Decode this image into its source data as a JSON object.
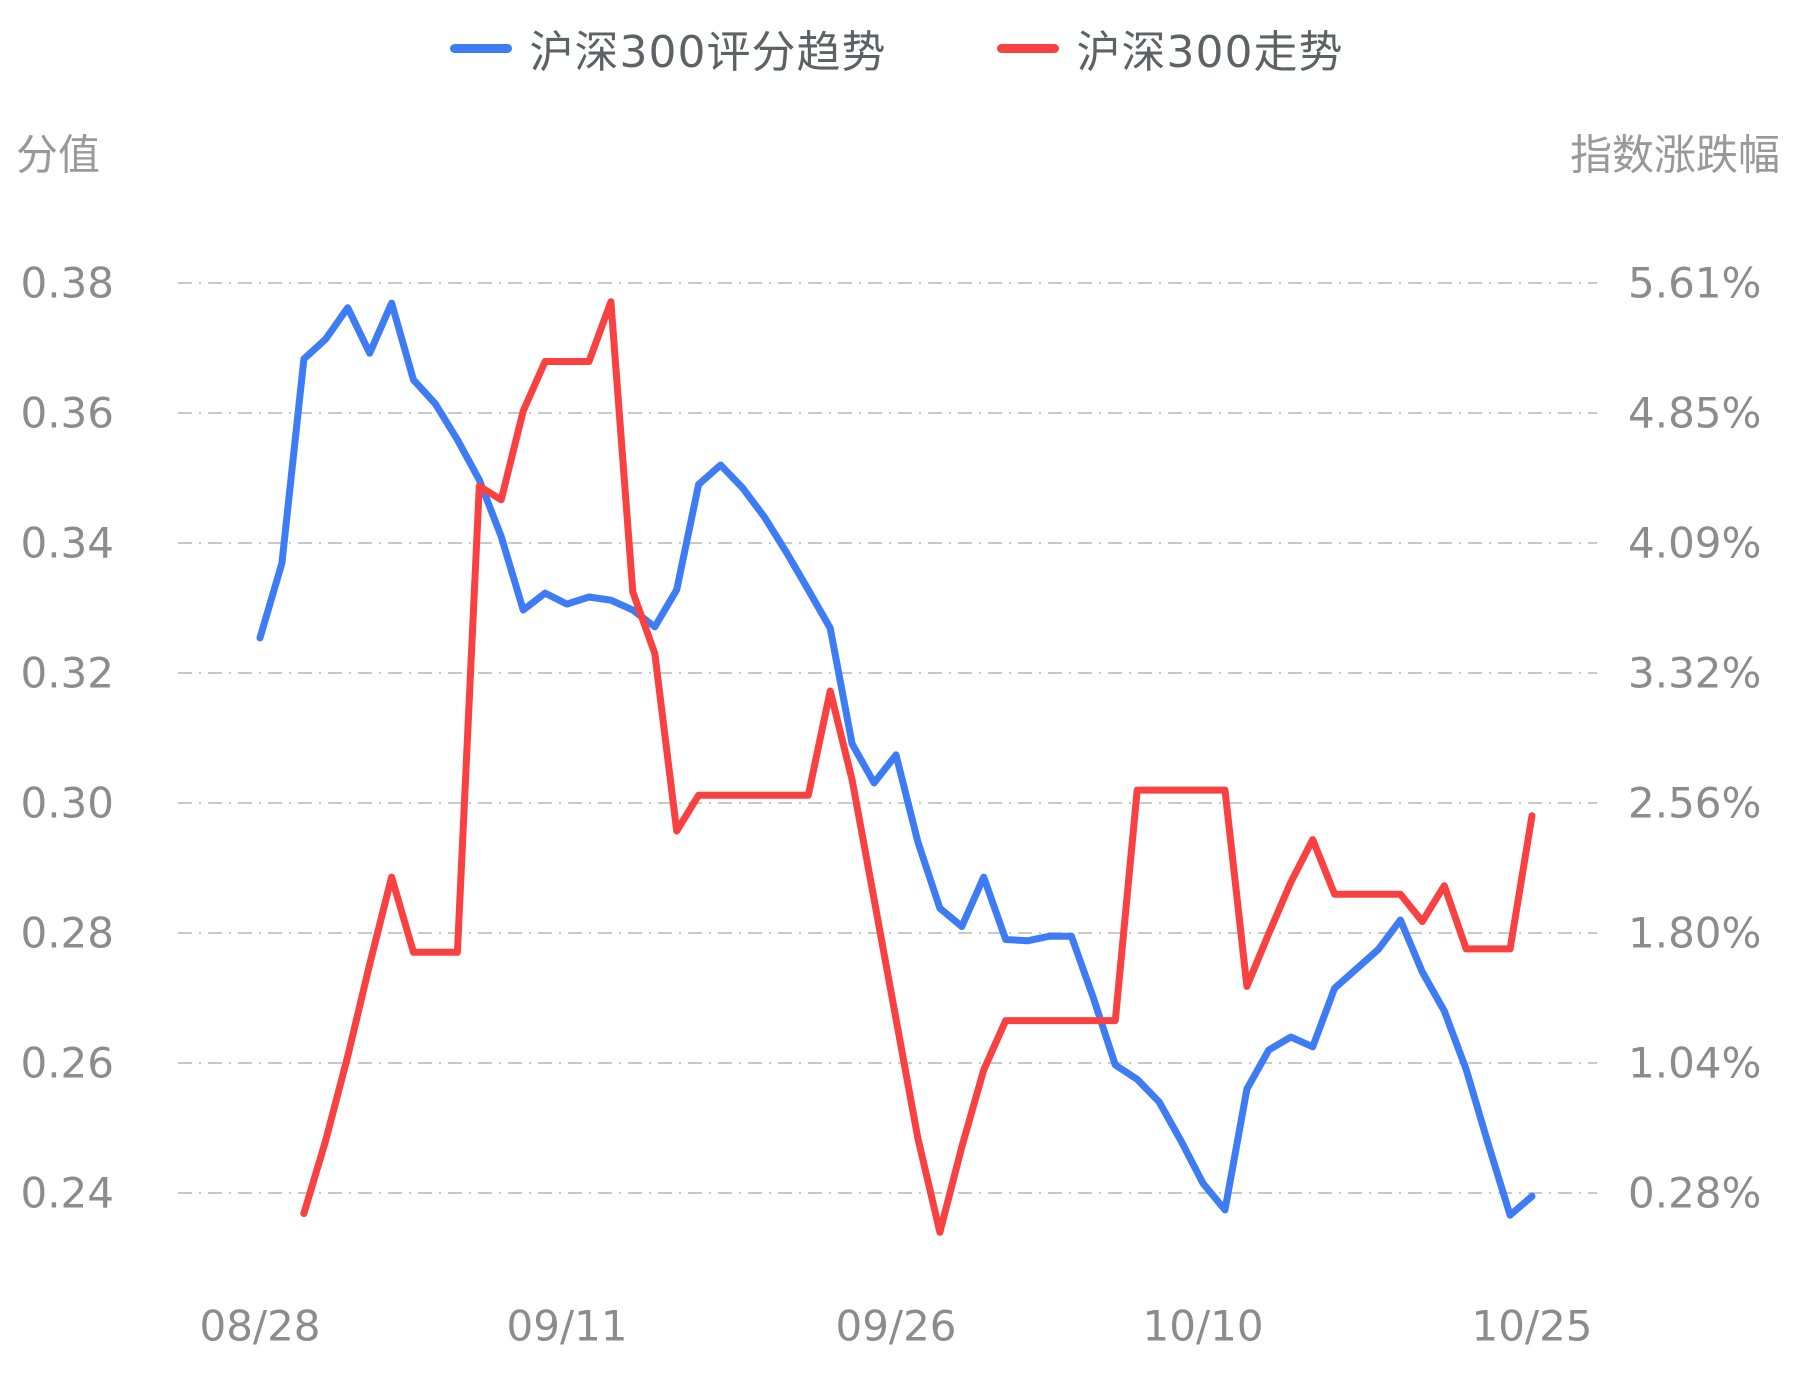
{
  "legend": [
    {
      "label": "沪深300评分趋势",
      "color": "#3e7cf6"
    },
    {
      "label": "沪深300走势",
      "color": "#fa4141"
    }
  ],
  "axes": {
    "left_title": "分值",
    "right_title": "指数涨跌幅",
    "left_ticks": [
      "0.38",
      "0.36",
      "0.34",
      "0.32",
      "0.30",
      "0.28",
      "0.26",
      "0.24"
    ],
    "right_ticks": [
      "5.61%",
      "4.85%",
      "4.09%",
      "3.32%",
      "2.56%",
      "1.80%",
      "1.04%",
      "0.28%"
    ],
    "x_ticks": [
      "08/28",
      "09/11",
      "09/26",
      "10/10",
      "10/25"
    ]
  },
  "chart_data": {
    "type": "line",
    "title": "",
    "xlabel": "",
    "x_tick_labels": [
      "08/28",
      "09/11",
      "09/26",
      "10/10",
      "10/25"
    ],
    "x_tick_indices": [
      0,
      14,
      29,
      43,
      58
    ],
    "n_points": 59,
    "grid": "dash-dot horizontal",
    "legend_position": "top-center",
    "left_axis": {
      "title": "分值",
      "ticks": [
        0.38,
        0.36,
        0.34,
        0.32,
        0.3,
        0.28,
        0.26,
        0.24
      ],
      "min": 0.24,
      "max": 0.38
    },
    "right_axis": {
      "title": "指数涨跌幅",
      "ticks": [
        5.61,
        4.85,
        4.09,
        3.32,
        2.56,
        1.8,
        1.04,
        0.28
      ],
      "min": 0.28,
      "max": 5.61,
      "unit": "%"
    },
    "series": [
      {
        "name": "沪深300评分趋势",
        "axis": "left",
        "color": "#3e7cf6",
        "values": [
          0.3254,
          0.3369,
          0.3683,
          0.3714,
          0.3762,
          0.3692,
          0.3769,
          0.3651,
          0.3614,
          0.3559,
          0.3497,
          0.341,
          0.3297,
          0.3323,
          0.3306,
          0.3317,
          0.3312,
          0.3297,
          0.3271,
          0.3328,
          0.349,
          0.352,
          0.3485,
          0.344,
          0.3386,
          0.3328,
          0.3269,
          0.3091,
          0.3031,
          0.3074,
          0.294,
          0.2838,
          0.281,
          0.2886,
          0.279,
          0.2788,
          0.2795,
          0.2795,
          0.27,
          0.2597,
          0.2575,
          0.254,
          0.248,
          0.2415,
          0.2374,
          0.256,
          0.262,
          0.264,
          0.2625,
          0.2715,
          0.2745,
          0.2775,
          0.282,
          0.274,
          0.268,
          0.259,
          0.2476,
          0.2366,
          0.2395
        ]
      },
      {
        "name": "沪深300走势",
        "axis": "right",
        "color": "#fa4141",
        "values": [
          null,
          null,
          0.16,
          0.59,
          1.08,
          1.62,
          2.13,
          1.69,
          1.69,
          1.69,
          4.42,
          4.34,
          4.86,
          5.15,
          5.15,
          5.15,
          5.5,
          3.8,
          3.44,
          2.4,
          2.61,
          2.61,
          2.61,
          2.61,
          2.61,
          2.61,
          3.22,
          2.7,
          2.0,
          1.3,
          0.6,
          0.05,
          0.55,
          1.0,
          1.29,
          1.29,
          1.29,
          1.29,
          1.29,
          1.29,
          2.64,
          2.64,
          2.64,
          2.64,
          2.64,
          1.49,
          1.8,
          2.1,
          2.35,
          2.03,
          2.03,
          2.03,
          2.03,
          1.87,
          2.08,
          1.71,
          1.71,
          1.71,
          2.49
        ]
      }
    ]
  }
}
